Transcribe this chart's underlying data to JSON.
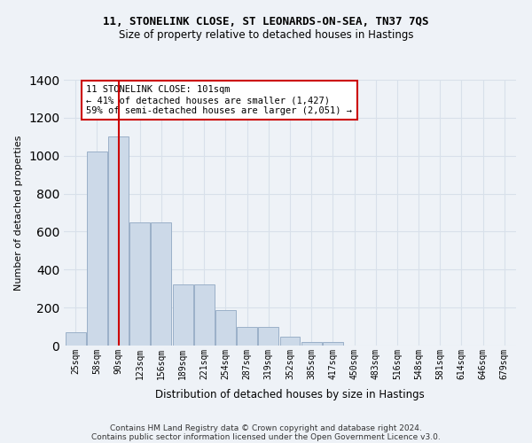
{
  "title1": "11, STONELINK CLOSE, ST LEONARDS-ON-SEA, TN37 7QS",
  "title2": "Size of property relative to detached houses in Hastings",
  "xlabel": "Distribution of detached houses by size in Hastings",
  "ylabel": "Number of detached properties",
  "bar_labels": [
    "25sqm",
    "58sqm",
    "90sqm",
    "123sqm",
    "156sqm",
    "189sqm",
    "221sqm",
    "254sqm",
    "287sqm",
    "319sqm",
    "352sqm",
    "385sqm",
    "417sqm",
    "450sqm",
    "483sqm",
    "516sqm",
    "548sqm",
    "581sqm",
    "614sqm",
    "646sqm",
    "679sqm"
  ],
  "bar_values": [
    70,
    1020,
    1100,
    650,
    650,
    320,
    320,
    185,
    100,
    100,
    45,
    20,
    20,
    0,
    0,
    0,
    0,
    0,
    0,
    0,
    0
  ],
  "bar_color": "#ccd9e8",
  "bar_edge_color": "#9ab0c8",
  "vline_x": 2.0,
  "vline_color": "#cc0000",
  "annotation_text": "11 STONELINK CLOSE: 101sqm\n← 41% of detached houses are smaller (1,427)\n59% of semi-detached houses are larger (2,051) →",
  "annotation_box_color": "#ffffff",
  "annotation_box_edge": "#cc0000",
  "ylim": [
    0,
    1400
  ],
  "yticks": [
    0,
    200,
    400,
    600,
    800,
    1000,
    1200,
    1400
  ],
  "footer1": "Contains HM Land Registry data © Crown copyright and database right 2024.",
  "footer2": "Contains public sector information licensed under the Open Government Licence v3.0.",
  "bg_color": "#eef2f7",
  "grid_color": "#d8e0ea"
}
